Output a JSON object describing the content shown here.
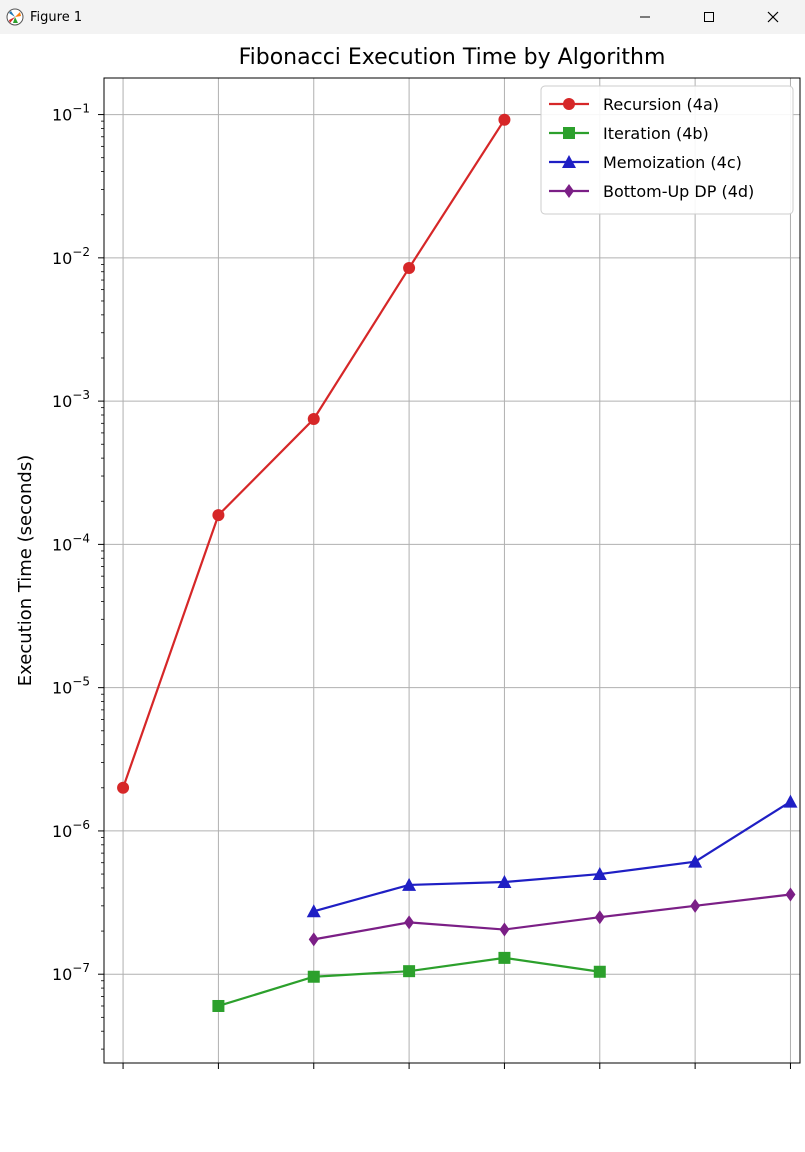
{
  "window": {
    "title": "Figure 1",
    "icon": "matplotlib-figure-icon",
    "controls": [
      "minimize-icon",
      "maximize-icon",
      "close-icon"
    ]
  },
  "chart_data": {
    "type": "line",
    "title": "Fibonacci Execution Time by Algorithm",
    "xlabel": "",
    "ylabel": "Execution Time (seconds)",
    "yscale": "log",
    "ylim": [
      2.4e-08,
      0.18
    ],
    "yticks": [
      {
        "exp": "-7"
      },
      {
        "exp": "-6"
      },
      {
        "exp": "-5"
      },
      {
        "exp": "-4"
      },
      {
        "exp": "-3"
      },
      {
        "exp": "-2"
      },
      {
        "exp": "-1"
      }
    ],
    "ytick_base": "10",
    "x": [
      1,
      2,
      3,
      4,
      5,
      6,
      7,
      8
    ],
    "xlim": [
      0.8,
      8.1
    ],
    "grid": true,
    "legend_position": "upper right",
    "series": [
      {
        "name": "Recursion (4a)",
        "color": "#d62728",
        "marker": "circle",
        "values": [
          2e-06,
          0.00016,
          0.00075,
          0.0085,
          0.092,
          null,
          null,
          null
        ]
      },
      {
        "name": "Iteration (4b)",
        "color": "#2ca02c",
        "marker": "square",
        "values": [
          null,
          6e-08,
          9.6e-08,
          1.05e-07,
          1.3e-07,
          1.04e-07,
          null,
          null
        ]
      },
      {
        "name": "Memoization (4c)",
        "color": "#1f1fc4",
        "marker": "triangle",
        "values": [
          null,
          null,
          2.75e-07,
          4.2e-07,
          4.4e-07,
          5e-07,
          6.1e-07,
          1.6e-06
        ]
      },
      {
        "name": "Bottom-Up DP (4d)",
        "color": "#7b1f86",
        "marker": "diamond",
        "values": [
          null,
          null,
          1.75e-07,
          2.3e-07,
          2.05e-07,
          2.5e-07,
          3e-07,
          3.6e-07
        ]
      }
    ]
  }
}
